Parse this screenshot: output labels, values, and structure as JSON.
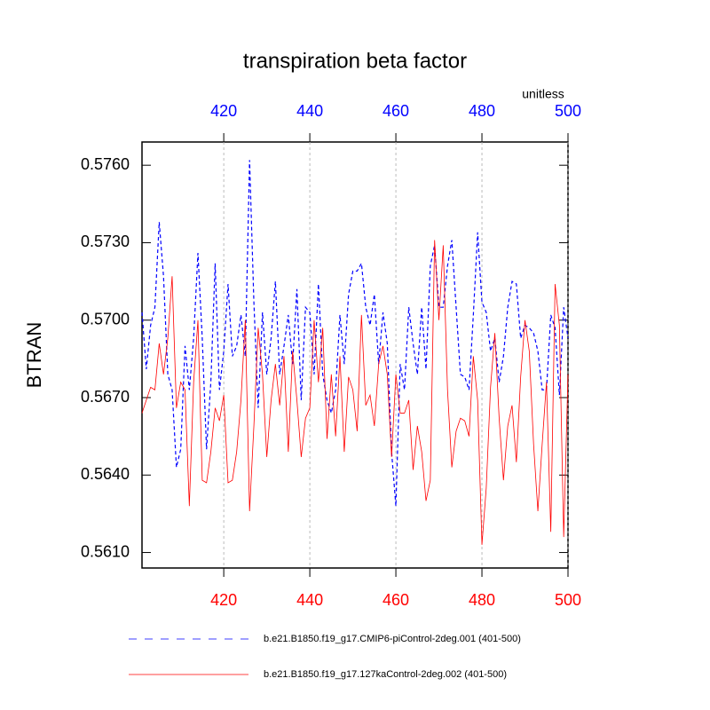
{
  "chart_data": {
    "type": "line",
    "title": "transpiration beta factor",
    "ylabel": "BTRAN",
    "units_label": "unitless",
    "x": [
      401,
      402,
      403,
      404,
      405,
      406,
      407,
      408,
      409,
      410,
      411,
      412,
      413,
      414,
      415,
      416,
      417,
      418,
      419,
      420,
      421,
      422,
      423,
      424,
      425,
      426,
      427,
      428,
      429,
      430,
      431,
      432,
      433,
      434,
      435,
      436,
      437,
      438,
      439,
      440,
      441,
      442,
      443,
      444,
      445,
      446,
      447,
      448,
      449,
      450,
      451,
      452,
      453,
      454,
      455,
      456,
      457,
      458,
      459,
      460,
      461,
      462,
      463,
      464,
      465,
      466,
      467,
      468,
      469,
      470,
      471,
      472,
      473,
      474,
      475,
      476,
      477,
      478,
      479,
      480,
      481,
      482,
      483,
      484,
      485,
      486,
      487,
      488,
      489,
      490,
      491,
      492,
      493,
      494,
      495,
      496,
      497,
      498,
      499,
      500
    ],
    "series": [
      {
        "name": "b.e21.B1850.f19_g17.CMIP6-piControl-2deg.001 (401-500)",
        "color": "#0000ff",
        "dash": "4 3",
        "values": [
          0.5703,
          0.5681,
          0.5698,
          0.5705,
          0.5738,
          0.5717,
          0.5679,
          0.5673,
          0.5643,
          0.565,
          0.569,
          0.5673,
          0.5693,
          0.5726,
          0.5693,
          0.565,
          0.5676,
          0.5722,
          0.5673,
          0.5688,
          0.5714,
          0.5686,
          0.569,
          0.5702,
          0.5686,
          0.5762,
          0.5707,
          0.5666,
          0.5703,
          0.5679,
          0.5693,
          0.5715,
          0.5679,
          0.569,
          0.5702,
          0.5683,
          0.5712,
          0.5669,
          0.5705,
          0.5703,
          0.5679,
          0.5714,
          0.5679,
          0.5669,
          0.5664,
          0.5673,
          0.5702,
          0.5683,
          0.571,
          0.5719,
          0.5719,
          0.5722,
          0.5705,
          0.5698,
          0.571,
          0.5683,
          0.5703,
          0.5691,
          0.5649,
          0.5628,
          0.5683,
          0.5673,
          0.5705,
          0.5691,
          0.5679,
          0.5705,
          0.5681,
          0.5721,
          0.5729,
          0.5705,
          0.5705,
          0.5721,
          0.5731,
          0.5705,
          0.5679,
          0.5678,
          0.5673,
          0.5702,
          0.5734,
          0.5707,
          0.5703,
          0.5688,
          0.5693,
          0.5676,
          0.5686,
          0.5705,
          0.5715,
          0.5714,
          0.5693,
          0.5698,
          0.5697,
          0.5695,
          0.5688,
          0.5673,
          0.5673,
          0.5702,
          0.5697,
          0.5671,
          0.5705,
          0.5693
        ]
      },
      {
        "name": "b.e21.B1850.f19_g17.127kaControl-2deg.002 (401-500)",
        "color": "#ff0000",
        "dash": null,
        "values": [
          0.5664,
          0.5669,
          0.5674,
          0.5673,
          0.5691,
          0.5679,
          0.5693,
          0.5717,
          0.5666,
          0.5676,
          0.5673,
          0.5628,
          0.5676,
          0.57,
          0.5638,
          0.5637,
          0.5649,
          0.5666,
          0.5661,
          0.5671,
          0.5637,
          0.5638,
          0.5649,
          0.5669,
          0.57,
          0.5626,
          0.5659,
          0.5697,
          0.5679,
          0.5647,
          0.5669,
          0.5683,
          0.5667,
          0.5686,
          0.5649,
          0.5688,
          0.5669,
          0.5647,
          0.5662,
          0.5666,
          0.57,
          0.5676,
          0.5697,
          0.5654,
          0.5679,
          0.5655,
          0.5686,
          0.5649,
          0.5678,
          0.5673,
          0.5657,
          0.5702,
          0.5667,
          0.5671,
          0.5659,
          0.5683,
          0.569,
          0.5679,
          0.5647,
          0.5679,
          0.5664,
          0.5664,
          0.5669,
          0.5642,
          0.5659,
          0.5649,
          0.563,
          0.5638,
          0.5731,
          0.57,
          0.5729,
          0.5673,
          0.5643,
          0.5657,
          0.5662,
          0.5661,
          0.5655,
          0.5686,
          0.5669,
          0.5613,
          0.5635,
          0.5674,
          0.5695,
          0.5662,
          0.5638,
          0.5659,
          0.5667,
          0.5645,
          0.5678,
          0.57,
          0.5688,
          0.5652,
          0.5626,
          0.5652,
          0.5676,
          0.5618,
          0.5714,
          0.5698,
          0.5616,
          0.5679
        ]
      }
    ],
    "xlim": [
      401,
      500
    ],
    "xticks": [
      420,
      440,
      460,
      480,
      500
    ],
    "top_tick_color": "#0000ff",
    "bottom_tick_color": "#ff0000",
    "ylim": [
      0.5604,
      0.5769
    ],
    "yticks": [
      {
        "value": 0.561,
        "label": "0.5610"
      },
      {
        "value": 0.564,
        "label": "0.5640"
      },
      {
        "value": 0.567,
        "label": "0.5670"
      },
      {
        "value": 0.57,
        "label": "0.5700"
      },
      {
        "value": 0.573,
        "label": "0.5730"
      },
      {
        "value": 0.576,
        "label": "0.5760"
      }
    ],
    "grid": true
  }
}
